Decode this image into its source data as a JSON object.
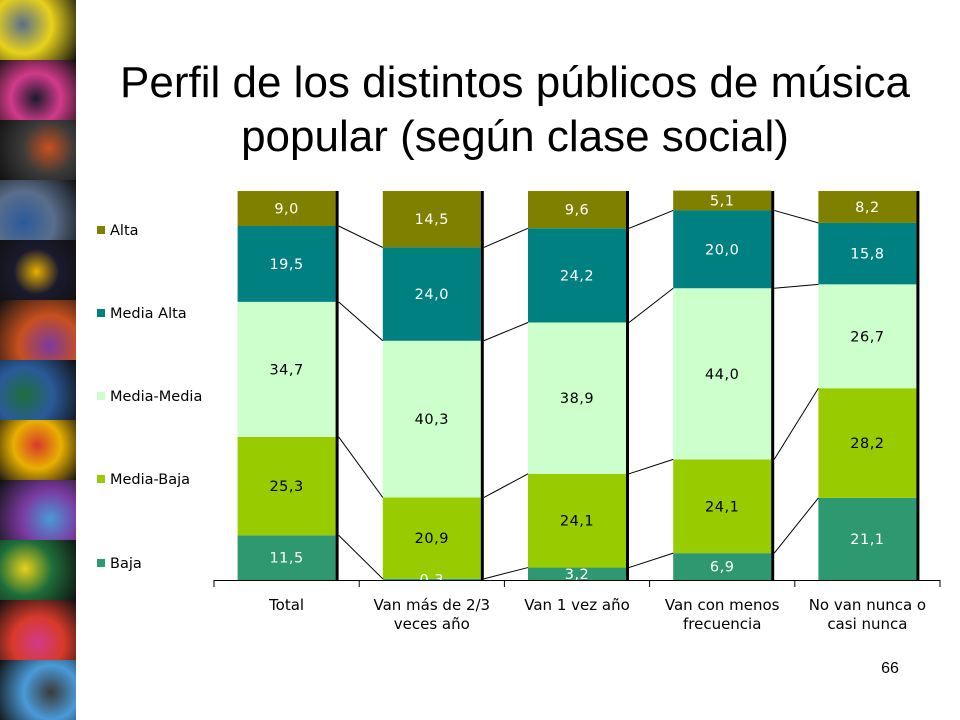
{
  "slide": {
    "title_line1": "Perfil de los distintos públicos de música",
    "title_line2": "popular (según clase social)",
    "page_number": "66"
  },
  "chart_data": {
    "type": "bar",
    "stacked": true,
    "percent_stacked": true,
    "categories": [
      [
        "Total"
      ],
      [
        "Van más de 2/3",
        "veces año"
      ],
      [
        "Van 1 vez año"
      ],
      [
        "Van con menos",
        "frecuencia"
      ],
      [
        "No van nunca o",
        "casi nunca"
      ]
    ],
    "series": [
      {
        "name": "Baja",
        "color": "#2e9870",
        "label_color": "#ffffff",
        "values": [
          11.5,
          0.3,
          3.2,
          6.9,
          21.1
        ],
        "labels": [
          "11,5",
          "0,3",
          "3,2",
          "6,9",
          "21,1"
        ]
      },
      {
        "name": "Media-Baja",
        "color": "#99cc00",
        "label_color": "#000000",
        "values": [
          25.3,
          20.9,
          24.1,
          24.1,
          28.2
        ],
        "labels": [
          "25,3",
          "20,9",
          "24,1",
          "24,1",
          "28,2"
        ]
      },
      {
        "name": "Media-Media",
        "color": "#ccffcc",
        "label_color": "#000000",
        "values": [
          34.7,
          40.3,
          38.9,
          44.0,
          26.7
        ],
        "labels": [
          "34,7",
          "40,3",
          "38,9",
          "44,0",
          "26,7"
        ]
      },
      {
        "name": "Media Alta",
        "color": "#008080",
        "label_color": "#ffffff",
        "values": [
          19.5,
          24.0,
          24.2,
          20.0,
          15.8
        ],
        "labels": [
          "19,5",
          "24,0",
          "24,2",
          "20,0",
          "15,8"
        ]
      },
      {
        "name": "Alta",
        "color": "#808000",
        "label_color": "#ffffff",
        "values": [
          9.0,
          14.5,
          9.6,
          5.1,
          8.2
        ],
        "labels": [
          "9,0",
          "14,5",
          "9,6",
          "5,1",
          "8,2"
        ]
      }
    ],
    "series_lines": true,
    "legend_position": "left",
    "legend_order": [
      "Alta",
      "Media Alta",
      "Media-Media",
      "Media-Baja",
      "Baja"
    ],
    "ylim": [
      0,
      100
    ],
    "grid": false
  },
  "decor": {
    "photo_strip_colors": [
      "#e8d21a",
      "#d23a8a",
      "#3a3a3a",
      "#5a6e8c",
      "#1a1a2e",
      "#c8501e",
      "#2a5a9a",
      "#e8b000",
      "#7a3aa0",
      "#1e6e3a",
      "#d83a2a",
      "#4a9ad8"
    ]
  }
}
